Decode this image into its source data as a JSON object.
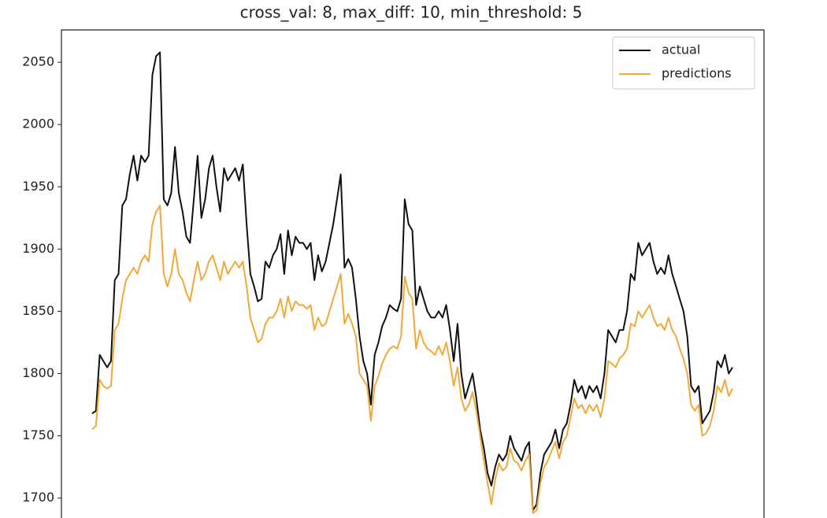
{
  "chart_data": {
    "type": "line",
    "title": "cross_val: 8, max_diff: 10, min_threshold: 5",
    "ylim": [
      1684,
      2076
    ],
    "yticks": [
      1700,
      1750,
      1800,
      1850,
      1900,
      1950,
      2000,
      2050
    ],
    "legend": "upper right",
    "series": [
      {
        "name": "actual",
        "color": "#111111",
        "values": [
          1768,
          1770,
          1815,
          1810,
          1805,
          1810,
          1875,
          1880,
          1935,
          1940,
          1960,
          1975,
          1955,
          1975,
          1970,
          1975,
          2040,
          2055,
          2058,
          1940,
          1935,
          1945,
          1982,
          1945,
          1930,
          1910,
          1905,
          1940,
          1975,
          1925,
          1940,
          1965,
          1975,
          1950,
          1930,
          1965,
          1955,
          1960,
          1965,
          1955,
          1968,
          1920,
          1880,
          1870,
          1858,
          1860,
          1890,
          1885,
          1895,
          1900,
          1912,
          1880,
          1915,
          1895,
          1910,
          1905,
          1905,
          1900,
          1905,
          1875,
          1895,
          1882,
          1890,
          1905,
          1920,
          1940,
          1960,
          1885,
          1892,
          1885,
          1860,
          1830,
          1810,
          1800,
          1775,
          1815,
          1825,
          1838,
          1845,
          1855,
          1852,
          1850,
          1860,
          1940,
          1920,
          1915,
          1855,
          1870,
          1860,
          1850,
          1845,
          1845,
          1850,
          1845,
          1855,
          1835,
          1810,
          1840,
          1800,
          1780,
          1790,
          1800,
          1780,
          1755,
          1740,
          1720,
          1710,
          1725,
          1735,
          1730,
          1735,
          1750,
          1740,
          1735,
          1730,
          1740,
          1745,
          1690,
          1695,
          1720,
          1735,
          1740,
          1745,
          1755,
          1740,
          1755,
          1760,
          1775,
          1795,
          1785,
          1790,
          1780,
          1790,
          1785,
          1790,
          1780,
          1800,
          1835,
          1830,
          1825,
          1835,
          1835,
          1850,
          1880,
          1875,
          1905,
          1895,
          1900,
          1905,
          1890,
          1880,
          1885,
          1880,
          1895,
          1880,
          1870,
          1860,
          1850,
          1830,
          1790,
          1785,
          1790,
          1760,
          1765,
          1770,
          1785,
          1810,
          1805,
          1815,
          1800,
          1805
        ]
      },
      {
        "name": "predictions",
        "color": "#f2a93b",
        "values": [
          1755,
          1758,
          1795,
          1790,
          1788,
          1790,
          1835,
          1840,
          1860,
          1875,
          1880,
          1885,
          1880,
          1890,
          1895,
          1890,
          1920,
          1930,
          1935,
          1880,
          1870,
          1880,
          1900,
          1880,
          1875,
          1865,
          1858,
          1875,
          1890,
          1875,
          1880,
          1890,
          1895,
          1885,
          1875,
          1890,
          1880,
          1885,
          1890,
          1885,
          1890,
          1870,
          1845,
          1835,
          1825,
          1828,
          1840,
          1845,
          1845,
          1850,
          1860,
          1845,
          1862,
          1850,
          1858,
          1855,
          1855,
          1852,
          1855,
          1835,
          1845,
          1838,
          1840,
          1850,
          1860,
          1870,
          1880,
          1840,
          1848,
          1840,
          1830,
          1800,
          1795,
          1790,
          1762,
          1790,
          1798,
          1808,
          1815,
          1820,
          1822,
          1820,
          1830,
          1878,
          1865,
          1860,
          1820,
          1835,
          1825,
          1820,
          1818,
          1815,
          1822,
          1815,
          1825,
          1810,
          1790,
          1805,
          1780,
          1770,
          1775,
          1785,
          1770,
          1750,
          1730,
          1712,
          1695,
          1715,
          1728,
          1722,
          1725,
          1740,
          1730,
          1728,
          1722,
          1730,
          1735,
          1688,
          1690,
          1712,
          1725,
          1730,
          1738,
          1745,
          1732,
          1745,
          1750,
          1765,
          1780,
          1772,
          1775,
          1768,
          1775,
          1770,
          1775,
          1765,
          1780,
          1810,
          1808,
          1805,
          1812,
          1815,
          1820,
          1840,
          1838,
          1850,
          1845,
          1850,
          1855,
          1845,
          1838,
          1840,
          1835,
          1845,
          1835,
          1830,
          1820,
          1812,
          1800,
          1775,
          1770,
          1775,
          1750,
          1752,
          1758,
          1770,
          1790,
          1785,
          1795,
          1782,
          1788
        ]
      }
    ]
  }
}
